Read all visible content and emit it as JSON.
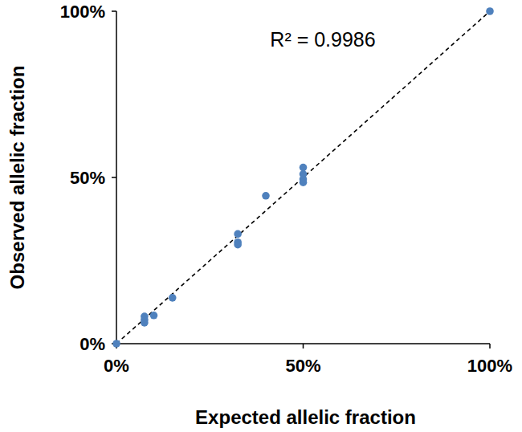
{
  "chart_data": {
    "type": "scatter",
    "x_label": "Expected allelic fraction",
    "y_label": "Observed allelic fraction",
    "annotation": "R² = 0.9986",
    "x": [
      0,
      7.5,
      7.5,
      7.5,
      10,
      15,
      32.5,
      32.5,
      32.5,
      40,
      50,
      50,
      50,
      50,
      100
    ],
    "values": [
      0,
      8.2,
      7.2,
      6.3,
      8.5,
      13.8,
      33,
      30.5,
      29.8,
      44.5,
      53,
      51,
      49.5,
      48.5,
      100
    ],
    "color": "#4f81bd",
    "marker": "circle",
    "fit": {
      "x": [
        0,
        100
      ],
      "values": [
        0,
        100
      ],
      "line_style": "dashed",
      "color": "#000000"
    },
    "xlim": [
      0,
      100
    ],
    "ylim": [
      0,
      100
    ],
    "xticks": [
      {
        "value": 0,
        "label": "0%"
      },
      {
        "value": 50,
        "label": "50%"
      },
      {
        "value": 100,
        "label": "100%"
      }
    ],
    "yticks": [
      {
        "value": 0,
        "label": "0%"
      },
      {
        "value": 50,
        "label": "50%"
      },
      {
        "value": 100,
        "label": "100%"
      }
    ],
    "grid": false
  }
}
